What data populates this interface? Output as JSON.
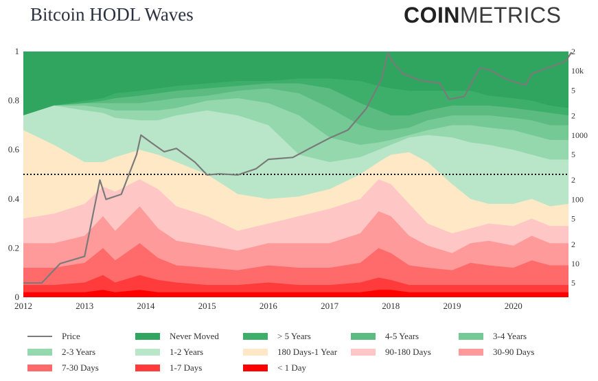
{
  "header": {
    "title": "Bitcoin HODL Waves",
    "brand_bold": "COIN",
    "brand_regular": "METRICS"
  },
  "chart_data": {
    "type": "area",
    "title": "Bitcoin HODL Waves",
    "stacking": "cumulative share of supply (0 to 1), youngest band at bottom",
    "x": [
      2012.0,
      2012.5,
      2013.0,
      2013.3,
      2013.5,
      2013.9,
      2014.2,
      2014.5,
      2015.0,
      2015.5,
      2016.0,
      2016.5,
      2017.0,
      2017.5,
      2017.8,
      2018.0,
      2018.3,
      2018.6,
      2019.0,
      2019.3,
      2019.6,
      2020.0,
      2020.3,
      2020.6,
      2020.9
    ],
    "x_ticks": [
      "2012",
      "2013",
      "2014",
      "2015",
      "2016",
      "2017",
      "2018",
      "2019",
      "2020"
    ],
    "y_ticks_left": [
      "0",
      "0.2",
      "0.4",
      "0.6",
      "0.8",
      "1"
    ],
    "y_ticks_right": [
      "5",
      "10",
      "2",
      "5",
      "100",
      "2",
      "5",
      "1000",
      "2",
      "5",
      "10k",
      "2"
    ],
    "ylim": [
      0,
      1
    ],
    "price_log_range": [
      3,
      20000
    ],
    "reference_line": {
      "y": 0.5,
      "style": "dotted"
    },
    "series": [
      {
        "name": "< 1 Day",
        "color": "#ff0000",
        "upper": [
          0.02,
          0.02,
          0.02,
          0.03,
          0.02,
          0.03,
          0.02,
          0.02,
          0.02,
          0.02,
          0.02,
          0.02,
          0.02,
          0.02,
          0.03,
          0.03,
          0.02,
          0.02,
          0.02,
          0.02,
          0.02,
          0.02,
          0.02,
          0.02,
          0.02
        ]
      },
      {
        "name": "1-7 Days",
        "color": "#ff3b3b",
        "upper": [
          0.05,
          0.05,
          0.06,
          0.09,
          0.06,
          0.09,
          0.07,
          0.06,
          0.05,
          0.05,
          0.06,
          0.05,
          0.05,
          0.06,
          0.08,
          0.07,
          0.05,
          0.05,
          0.05,
          0.05,
          0.05,
          0.05,
          0.05,
          0.05,
          0.05
        ]
      },
      {
        "name": "7-30 Days",
        "color": "#ff6b6b",
        "upper": [
          0.12,
          0.12,
          0.14,
          0.2,
          0.15,
          0.22,
          0.16,
          0.13,
          0.12,
          0.11,
          0.13,
          0.12,
          0.12,
          0.14,
          0.2,
          0.18,
          0.13,
          0.12,
          0.11,
          0.14,
          0.13,
          0.12,
          0.15,
          0.13,
          0.13
        ]
      },
      {
        "name": "30-90 Days",
        "color": "#ff9a9a",
        "upper": [
          0.22,
          0.22,
          0.25,
          0.33,
          0.27,
          0.37,
          0.28,
          0.23,
          0.21,
          0.19,
          0.22,
          0.22,
          0.22,
          0.26,
          0.35,
          0.33,
          0.25,
          0.21,
          0.18,
          0.22,
          0.23,
          0.21,
          0.25,
          0.22,
          0.22
        ]
      },
      {
        "name": "90-180 Days",
        "color": "#ffc6c6",
        "upper": [
          0.32,
          0.34,
          0.38,
          0.45,
          0.43,
          0.48,
          0.44,
          0.37,
          0.33,
          0.27,
          0.3,
          0.33,
          0.36,
          0.4,
          0.48,
          0.46,
          0.38,
          0.3,
          0.26,
          0.28,
          0.3,
          0.29,
          0.32,
          0.29,
          0.29
        ]
      },
      {
        "name": "180 Days-1 Year",
        "color": "#ffe8c6",
        "upper": [
          0.68,
          0.62,
          0.55,
          0.55,
          0.57,
          0.6,
          0.58,
          0.55,
          0.5,
          0.42,
          0.4,
          0.41,
          0.44,
          0.5,
          0.55,
          0.58,
          0.59,
          0.55,
          0.46,
          0.4,
          0.38,
          0.38,
          0.4,
          0.37,
          0.38
        ]
      },
      {
        "name": "1-2 Years",
        "color": "#b9e6c9",
        "upper": [
          0.74,
          0.78,
          0.76,
          0.75,
          0.73,
          0.72,
          0.72,
          0.74,
          0.76,
          0.74,
          0.7,
          0.58,
          0.55,
          0.57,
          0.6,
          0.62,
          0.65,
          0.66,
          0.65,
          0.63,
          0.62,
          0.6,
          0.58,
          0.56,
          0.56
        ]
      },
      {
        "name": "2-3 Years",
        "color": "#96d8ae",
        "upper": [
          0.74,
          0.78,
          0.78,
          0.77,
          0.76,
          0.76,
          0.76,
          0.77,
          0.8,
          0.81,
          0.79,
          0.74,
          0.65,
          0.62,
          0.63,
          0.64,
          0.66,
          0.68,
          0.7,
          0.7,
          0.69,
          0.68,
          0.66,
          0.64,
          0.64
        ]
      },
      {
        "name": "3-4 Years",
        "color": "#74c994",
        "upper": [
          0.74,
          0.78,
          0.79,
          0.79,
          0.79,
          0.79,
          0.8,
          0.81,
          0.82,
          0.84,
          0.85,
          0.83,
          0.77,
          0.7,
          0.68,
          0.68,
          0.69,
          0.72,
          0.74,
          0.74,
          0.74,
          0.73,
          0.72,
          0.7,
          0.7
        ]
      },
      {
        "name": "4-5 Years",
        "color": "#5cbb81",
        "upper": [
          0.74,
          0.78,
          0.79,
          0.8,
          0.81,
          0.82,
          0.83,
          0.84,
          0.85,
          0.86,
          0.87,
          0.87,
          0.85,
          0.79,
          0.76,
          0.74,
          0.74,
          0.76,
          0.78,
          0.78,
          0.78,
          0.77,
          0.76,
          0.75,
          0.74
        ]
      },
      {
        "name": "> 5 Years",
        "color": "#3daf6b",
        "upper": [
          0.74,
          0.78,
          0.8,
          0.81,
          0.83,
          0.84,
          0.85,
          0.86,
          0.87,
          0.88,
          0.88,
          0.89,
          0.89,
          0.88,
          0.86,
          0.85,
          0.84,
          0.84,
          0.84,
          0.84,
          0.82,
          0.81,
          0.8,
          0.78,
          0.77
        ]
      },
      {
        "name": "Never Moved",
        "color": "#2fa55f",
        "upper": [
          1,
          1,
          1,
          1,
          1,
          1,
          1,
          1,
          1,
          1,
          1,
          1,
          1,
          1,
          1,
          1,
          1,
          1,
          1,
          1,
          1,
          1,
          1,
          1,
          1
        ]
      }
    ],
    "price": {
      "name": "Price",
      "color": "#7a7a7a",
      "points": [
        [
          2012.0,
          5
        ],
        [
          2012.3,
          5
        ],
        [
          2012.6,
          10
        ],
        [
          2013.0,
          13
        ],
        [
          2013.25,
          200
        ],
        [
          2013.35,
          100
        ],
        [
          2013.6,
          120
        ],
        [
          2013.85,
          500
        ],
        [
          2013.92,
          1000
        ],
        [
          2014.1,
          750
        ],
        [
          2014.3,
          550
        ],
        [
          2014.5,
          620
        ],
        [
          2014.8,
          380
        ],
        [
          2015.0,
          240
        ],
        [
          2015.2,
          250
        ],
        [
          2015.5,
          240
        ],
        [
          2015.8,
          300
        ],
        [
          2016.0,
          420
        ],
        [
          2016.4,
          450
        ],
        [
          2016.7,
          640
        ],
        [
          2017.0,
          900
        ],
        [
          2017.3,
          1200
        ],
        [
          2017.6,
          2600
        ],
        [
          2017.85,
          7500
        ],
        [
          2017.95,
          19000
        ],
        [
          2018.05,
          13000
        ],
        [
          2018.2,
          9000
        ],
        [
          2018.5,
          7000
        ],
        [
          2018.8,
          6400
        ],
        [
          2018.95,
          3600
        ],
        [
          2019.2,
          4000
        ],
        [
          2019.45,
          11000
        ],
        [
          2019.6,
          10500
        ],
        [
          2019.9,
          7300
        ],
        [
          2020.2,
          6000
        ],
        [
          2020.3,
          9000
        ],
        [
          2020.6,
          11500
        ],
        [
          2020.85,
          14000
        ],
        [
          2020.95,
          19500
        ]
      ]
    }
  },
  "legend": [
    {
      "label": "Price",
      "color": "#7a7a7a",
      "kind": "line"
    },
    {
      "label": "Never Moved",
      "color": "#2fa55f",
      "kind": "swatch"
    },
    {
      "label": "> 5 Years",
      "color": "#3daf6b",
      "kind": "swatch"
    },
    {
      "label": "4-5 Years",
      "color": "#5cbb81",
      "kind": "swatch"
    },
    {
      "label": "3-4 Years",
      "color": "#74c994",
      "kind": "swatch"
    },
    {
      "label": "2-3 Years",
      "color": "#96d8ae",
      "kind": "swatch"
    },
    {
      "label": "1-2 Years",
      "color": "#b9e6c9",
      "kind": "swatch"
    },
    {
      "label": "180 Days-1 Year",
      "color": "#ffe8c6",
      "kind": "swatch"
    },
    {
      "label": "90-180 Days",
      "color": "#ffc6c6",
      "kind": "swatch"
    },
    {
      "label": "30-90 Days",
      "color": "#ff9a9a",
      "kind": "swatch"
    },
    {
      "label": "7-30 Days",
      "color": "#ff6b6b",
      "kind": "swatch"
    },
    {
      "label": "1-7 Days",
      "color": "#ff3b3b",
      "kind": "swatch"
    },
    {
      "label": "< 1 Day",
      "color": "#ff0000",
      "kind": "swatch"
    }
  ]
}
